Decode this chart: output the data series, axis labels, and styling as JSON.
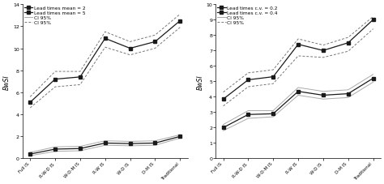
{
  "categories": [
    "Full IS",
    "R-W-D IS",
    "W-D-M IS",
    "R-W IS",
    "W-D IS",
    "D-M IS",
    "Traditional"
  ],
  "left": {
    "ylabel": "BwSI",
    "ylim": [
      0,
      14
    ],
    "yticks": [
      0,
      2,
      4,
      6,
      8,
      10,
      12,
      14
    ],
    "series": {
      "mean2": [
        0.4,
        0.85,
        0.9,
        1.4,
        1.35,
        1.4,
        2.0
      ],
      "mean5": [
        5.1,
        7.2,
        7.4,
        10.9,
        10.0,
        10.6,
        12.5
      ]
    },
    "ci_mean2": {
      "upper": [
        0.55,
        1.05,
        1.1,
        1.6,
        1.55,
        1.6,
        2.15
      ],
      "lower": [
        0.25,
        0.65,
        0.7,
        1.2,
        1.15,
        1.2,
        1.85
      ]
    },
    "ci_mean5": {
      "upper": [
        5.6,
        7.9,
        7.9,
        11.5,
        10.6,
        11.2,
        13.1
      ],
      "lower": [
        4.6,
        6.5,
        6.7,
        10.1,
        9.4,
        10.0,
        11.9
      ]
    },
    "legend": [
      "Lead times mean = 2",
      "Lead times mean = 5",
      "CI 95%",
      "CI 95%"
    ]
  },
  "right": {
    "ylabel": "BwSI",
    "ylim": [
      0,
      10
    ],
    "yticks": [
      0,
      1,
      2,
      3,
      4,
      5,
      6,
      7,
      8,
      9,
      10
    ],
    "series": {
      "cv02": [
        2.0,
        2.85,
        2.9,
        4.35,
        4.1,
        4.2,
        5.2
      ],
      "cv04": [
        3.85,
        5.1,
        5.3,
        7.4,
        7.0,
        7.5,
        9.0
      ]
    },
    "ci_cv02": {
      "upper": [
        2.2,
        3.1,
        3.1,
        4.6,
        4.35,
        4.45,
        5.45
      ],
      "lower": [
        1.8,
        2.6,
        2.7,
        4.1,
        3.85,
        3.95,
        4.95
      ]
    },
    "ci_cv04": {
      "upper": [
        4.3,
        5.55,
        5.75,
        7.75,
        7.35,
        7.85,
        9.2
      ],
      "lower": [
        3.4,
        4.65,
        4.85,
        6.65,
        6.55,
        6.95,
        8.4
      ]
    },
    "legend": [
      "Lead times c.v. = 0.2",
      "Lead times c.v. = 0.4",
      "CI 95%",
      "CI 95%"
    ]
  },
  "line_color_dark": "#1a1a1a",
  "line_color_ci_solid": "#aaaaaa",
  "line_color_ci_dashed": "#777777",
  "marker": "s",
  "markersize": 2.5,
  "linewidth": 0.9,
  "ci_linewidth": 0.7
}
